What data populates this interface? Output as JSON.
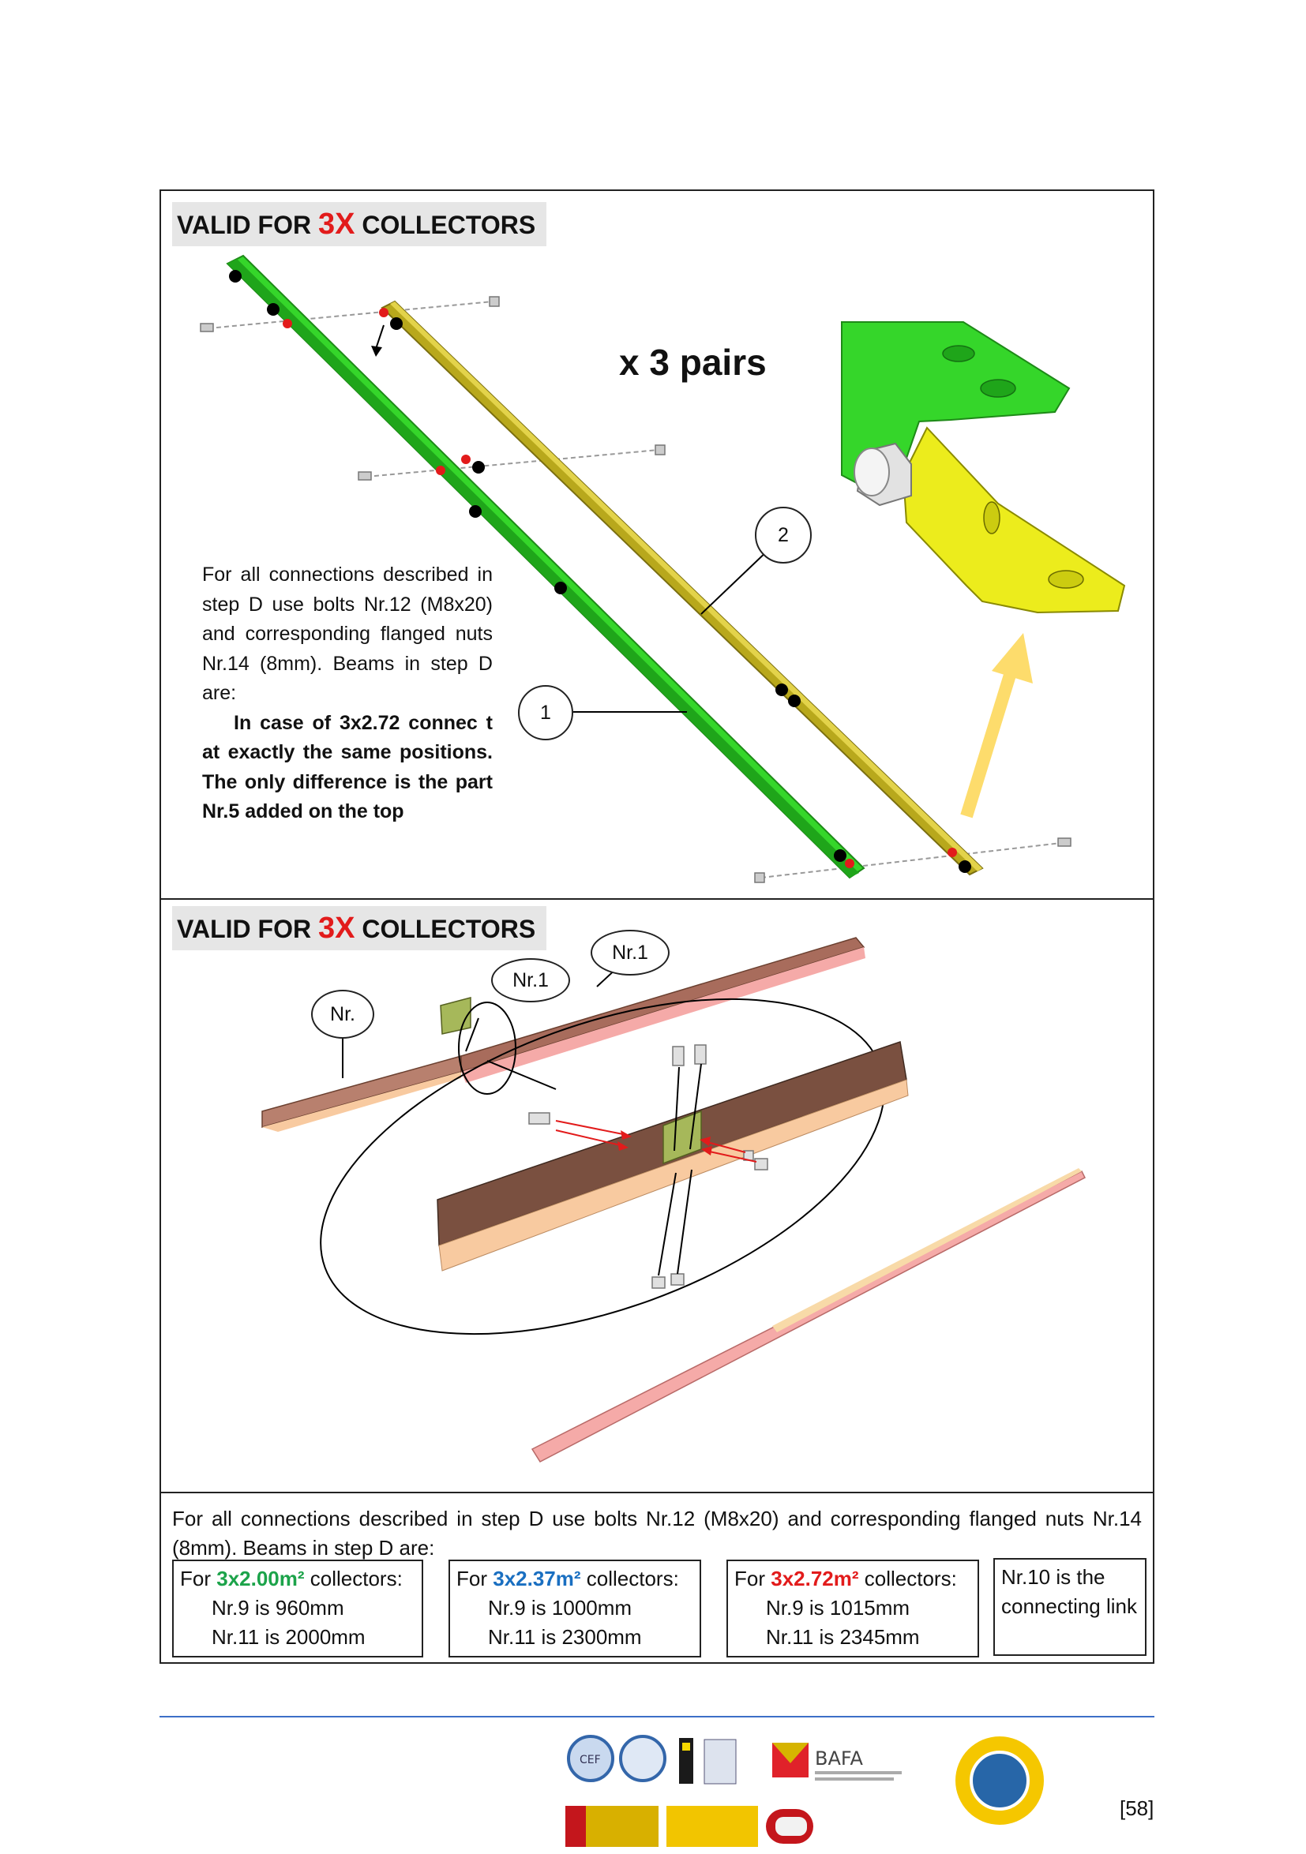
{
  "panel1": {
    "header": {
      "prefix": "VALID FOR ",
      "accent": "3X",
      "suffix": " COLLECTORS"
    },
    "pairs_label": "x 3 pairs",
    "callouts": [
      "2",
      "1"
    ],
    "step_text": {
      "normal": "For all connections described in step D use bolts Nr.12 (M8x20) and corresponding flanged nuts Nr.14 (8mm). Beams in step D are:",
      "bold": "In case of 3x2.72 connec t at exactly the same positions. The only difference is the part Nr.5 added on the top"
    }
  },
  "panel2": {
    "header": {
      "prefix": "VALID FOR ",
      "accent": "3X",
      "suffix": " COLLECTORS"
    },
    "callouts": [
      "Nr.1",
      "Nr.1",
      "Nr."
    ]
  },
  "panel3": {
    "note": "For all connections described in step D use bolts Nr.12 (M8x20) and corresponding flanged nuts Nr.14 (8mm). Beams in step D are:",
    "specs": [
      {
        "pre": "For ",
        "size": "3x2.00m²",
        "post": " collectors:",
        "line1": "Nr.9 is 960mm",
        "line2": "Nr.11 is 2000mm"
      },
      {
        "pre": "For ",
        "size": "3x2.37m²",
        "post": " collectors:",
        "line1": "Nr.9 is 1000mm",
        "line2": "Nr.11 is 2300mm"
      },
      {
        "pre": "For ",
        "size": "3x2.72m²",
        "post": " collectors:",
        "line1": "Nr.9 is 1015mm",
        "line2": "Nr.11 is 2345mm"
      }
    ],
    "link_note": "Nr.10 is the connecting link"
  },
  "footer": {
    "page_number": "[58]",
    "logos": [
      "CEF",
      "BAFA"
    ],
    "colors": {
      "rule": "#3d6fc7",
      "green_beam": "#35d62a",
      "olive_beam": "#b8a81c",
      "accent_red": "#e21b1b"
    }
  }
}
